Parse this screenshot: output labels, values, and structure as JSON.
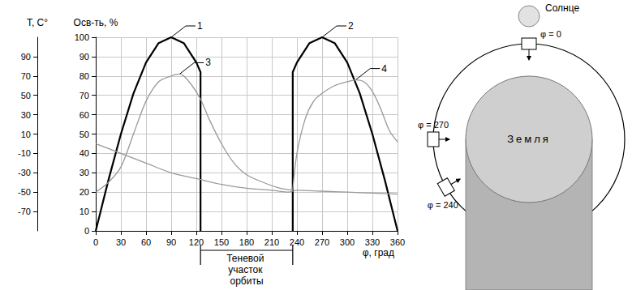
{
  "chart_data": {
    "type": "line",
    "xlabel": "φ, град",
    "ylabel": "Осв-ть, %",
    "y2label": "T, C°",
    "xlim": [
      0,
      360
    ],
    "xticks": [
      0,
      30,
      60,
      90,
      120,
      150,
      180,
      210,
      240,
      270,
      300,
      330,
      360
    ],
    "ylim": [
      0,
      100
    ],
    "yticks": [
      0,
      10,
      20,
      30,
      40,
      50,
      60,
      70,
      80,
      90,
      100
    ],
    "y2lim": [
      -90,
      110
    ],
    "y2ticks": [
      -70,
      -50,
      -30,
      -10,
      10,
      30,
      50,
      70,
      90
    ],
    "grid": true,
    "series": [
      {
        "name": "1",
        "color": "#000000",
        "x": [
          0,
          15,
          30,
          45,
          60,
          75,
          90,
          105,
          120,
          125,
          125
        ],
        "values": [
          0,
          26,
          50,
          71,
          87,
          97,
          100,
          97,
          87,
          82,
          0
        ]
      },
      {
        "name": "2",
        "color": "#000000",
        "x": [
          235,
          235,
          240,
          255,
          270,
          285,
          300,
          315,
          330,
          345,
          360
        ],
        "values": [
          0,
          82,
          87,
          97,
          100,
          97,
          87,
          71,
          50,
          26,
          0
        ]
      },
      {
        "name": "3",
        "color": "#999999",
        "axis": "y2",
        "x": [
          0,
          15,
          30,
          45,
          60,
          75,
          90,
          100,
          105,
          115,
          125,
          135,
          150,
          165,
          180,
          200,
          220,
          235
        ],
        "values": [
          -50,
          -40,
          -24,
          10,
          44,
          64,
          70,
          72,
          70,
          60,
          46,
          26,
          0,
          -20,
          -32,
          -40,
          -46,
          -48
        ]
      },
      {
        "name": "4",
        "color": "#999999",
        "axis": "y2",
        "x": [
          235,
          240,
          250,
          260,
          270,
          285,
          300,
          310,
          320,
          330,
          340,
          350,
          360
        ],
        "values": [
          -48,
          -10,
          26,
          44,
          52,
          60,
          64,
          66,
          64,
          54,
          36,
          14,
          2
        ]
      },
      {
        "color": "#999999",
        "axis": "y2",
        "x": [
          0,
          30,
          60,
          90,
          120,
          150,
          180,
          210,
          230,
          240,
          270,
          300,
          330,
          360
        ],
        "values": [
          0,
          -10,
          -20,
          -30,
          -36,
          -42,
          -46,
          -48,
          -50,
          -48,
          -49,
          -50,
          -51,
          -52
        ]
      }
    ],
    "annotations": [
      {
        "text": "Теневой участок орбиты",
        "x_range": [
          125,
          235
        ]
      }
    ]
  },
  "diagram": {
    "sun": "Солнце",
    "earth": "Земля",
    "satellites": [
      {
        "label": "φ = 0",
        "angle": 0
      },
      {
        "label": "φ = 270",
        "angle": 270
      },
      {
        "label": "φ = 240",
        "angle": 240
      }
    ]
  }
}
